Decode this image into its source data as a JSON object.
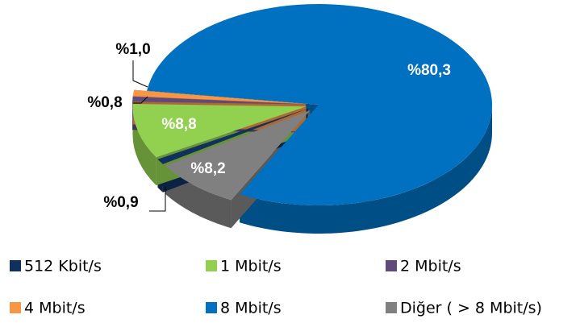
{
  "chart_data": {
    "type": "pie3d",
    "categories": [
      "512 Kbit/s",
      "1 Mbit/s",
      "2 Mbit/s",
      "4 Mbit/s",
      "8 Mbit/s",
      "Diğer ( > 8 Mbit/s)"
    ],
    "values": [
      0.9,
      8.8,
      0.8,
      1.0,
      80.3,
      8.2
    ],
    "value_labels": [
      "%0,9",
      "%8,8",
      "%0,8",
      "%1,0",
      "%80,3",
      "%8,2"
    ],
    "colors": [
      "#10305e",
      "#92d050",
      "#604a7b",
      "#f79646",
      "#0070c0",
      "#808080"
    ],
    "legend": "bottom"
  }
}
